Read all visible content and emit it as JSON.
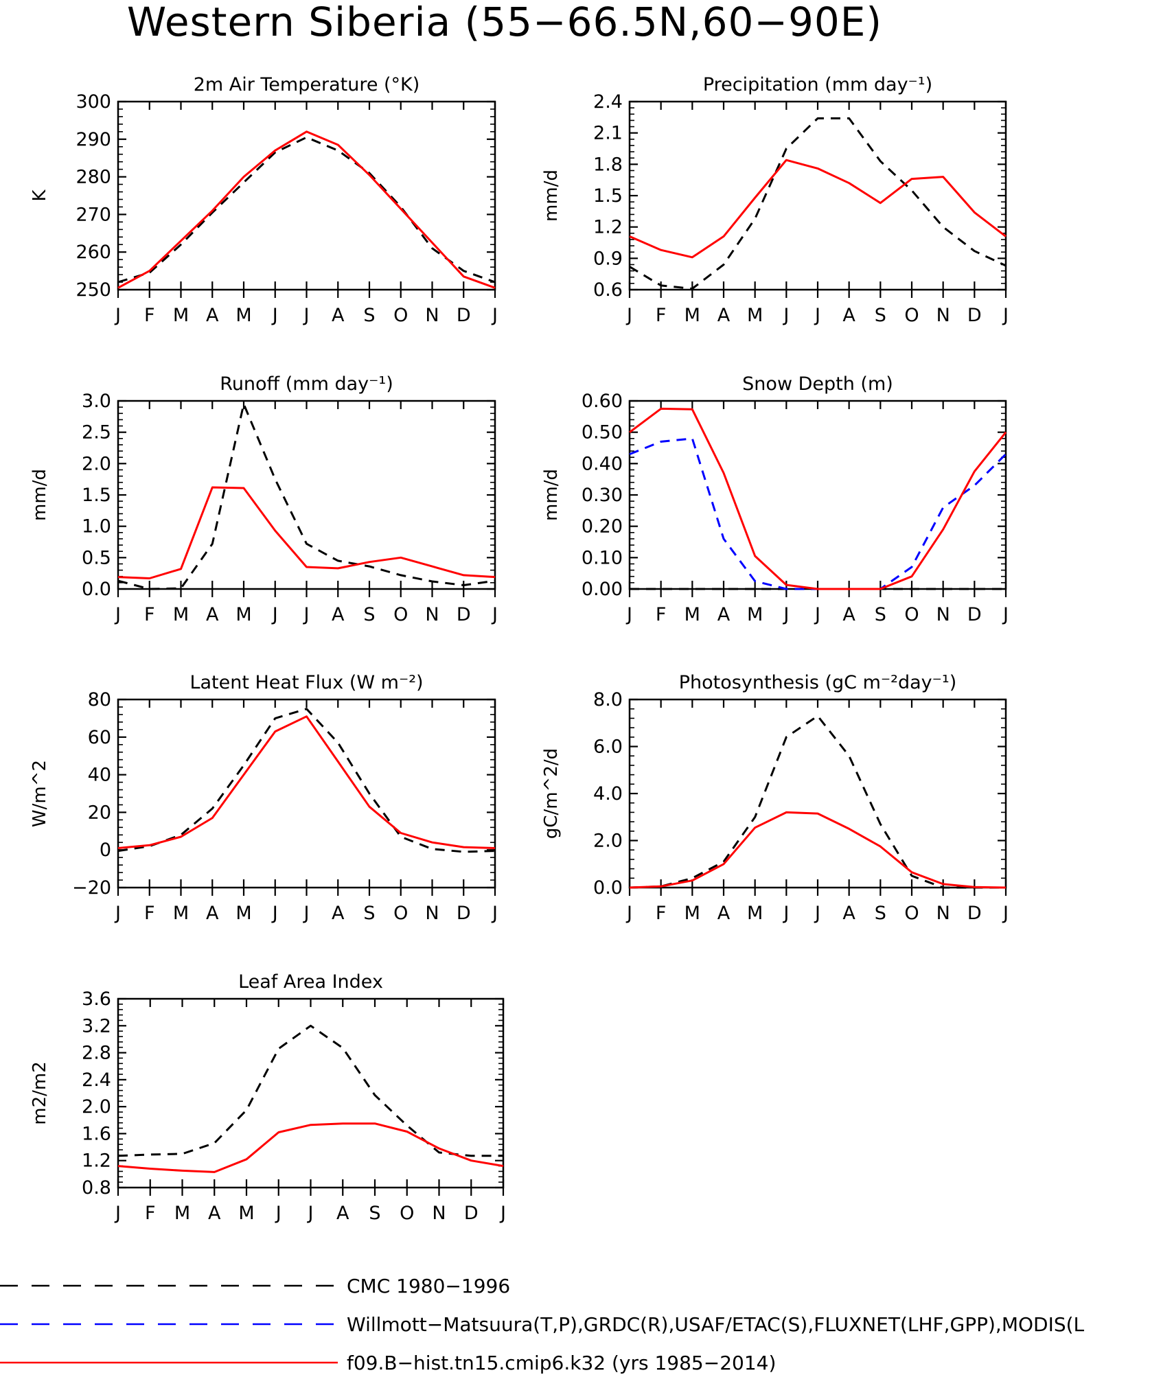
{
  "figure_title": "Western Siberia (55−66.5N,60−90E)",
  "colors": {
    "model": "#ff0000",
    "cmc": "#000000",
    "obs": "#0000ff"
  },
  "legend": [
    {
      "label": "CMC 1980−1996",
      "color": "#000000",
      "style": "dashed"
    },
    {
      "label": "Willmott−Matsuura(T,P),GRDC(R),USAF/ETAC(S),FLUXNET(LHF,GPP),MODIS(L",
      "color": "#0000ff",
      "style": "dashed"
    },
    {
      "label": "f09.B−hist.tn15.cmip6.k32 (yrs 1985−2014)",
      "color": "#ff0000",
      "style": "solid"
    }
  ],
  "chart_data": [
    {
      "type": "line",
      "title": "2m Air Temperature (°K)",
      "ylabel": "K",
      "categories": [
        "J",
        "F",
        "M",
        "A",
        "M",
        "J",
        "J",
        "A",
        "S",
        "O",
        "N",
        "D",
        "J"
      ],
      "ylim": [
        250,
        300
      ],
      "yticks": [
        "250",
        "260",
        "270",
        "280",
        "290",
        "300"
      ],
      "series": [
        {
          "name": "CMC 1980−1996",
          "style": "dashed",
          "color": "#000000",
          "values": [
            252,
            254.5,
            262,
            270.5,
            278.5,
            286.5,
            290.5,
            287,
            281,
            272,
            261,
            255,
            252
          ]
        },
        {
          "name": "f09.B−hist.tn15.cmip6.k32 (yrs 1985−2014)",
          "style": "solid",
          "color": "#ff0000",
          "values": [
            250.5,
            255,
            263,
            271,
            280,
            287,
            292,
            288.5,
            280.5,
            271.5,
            262.5,
            253.5,
            250.5
          ]
        }
      ]
    },
    {
      "type": "line",
      "title": "Precipitation (mm day⁻¹)",
      "ylabel": "mm/d",
      "categories": [
        "J",
        "F",
        "M",
        "A",
        "M",
        "J",
        "J",
        "A",
        "S",
        "O",
        "N",
        "D",
        "J"
      ],
      "ylim": [
        0.6,
        2.4
      ],
      "yticks": [
        "0.6",
        "0.9",
        "1.2",
        "1.5",
        "1.8",
        "2.1",
        "2.4"
      ],
      "series": [
        {
          "name": "CMC 1980−1996",
          "style": "dashed",
          "color": "#000000",
          "values": [
            0.82,
            0.64,
            0.61,
            0.84,
            1.28,
            1.95,
            2.24,
            2.24,
            1.83,
            1.55,
            1.2,
            0.97,
            0.83
          ]
        },
        {
          "name": "f09.B−hist.tn15.cmip6.k32 (yrs 1985−2014)",
          "style": "solid",
          "color": "#ff0000",
          "values": [
            1.11,
            0.98,
            0.91,
            1.11,
            1.48,
            1.84,
            1.76,
            1.62,
            1.43,
            1.66,
            1.68,
            1.34,
            1.11
          ]
        }
      ]
    },
    {
      "type": "line",
      "title": "Runoff (mm day⁻¹)",
      "ylabel": "mm/d",
      "categories": [
        "J",
        "F",
        "M",
        "A",
        "M",
        "J",
        "J",
        "A",
        "S",
        "O",
        "N",
        "D",
        "J"
      ],
      "ylim": [
        0,
        3.0
      ],
      "yticks": [
        "0.0",
        "0.5",
        "1.0",
        "1.5",
        "2.0",
        "2.5",
        "3.0"
      ],
      "series": [
        {
          "name": "CMC 1980−1996",
          "style": "dashed",
          "color": "#000000",
          "values": [
            0.13,
            0.0,
            0.01,
            0.72,
            2.95,
            1.75,
            0.72,
            0.45,
            0.36,
            0.22,
            0.12,
            0.06,
            0.13
          ]
        },
        {
          "name": "f09.B−hist.tn15.cmip6.k32 (yrs 1985−2014)",
          "style": "solid",
          "color": "#ff0000",
          "values": [
            0.19,
            0.17,
            0.32,
            1.62,
            1.61,
            0.93,
            0.35,
            0.33,
            0.43,
            0.5,
            0.36,
            0.22,
            0.19
          ]
        }
      ]
    },
    {
      "type": "line",
      "title": "Snow Depth (m)",
      "ylabel": "mm/d",
      "categories": [
        "J",
        "F",
        "M",
        "A",
        "M",
        "J",
        "J",
        "A",
        "S",
        "O",
        "N",
        "D",
        "J"
      ],
      "ylim": [
        0,
        0.6
      ],
      "yticks": [
        "0.00",
        "0.10",
        "0.20",
        "0.30",
        "0.40",
        "0.50",
        "0.60"
      ],
      "series": [
        {
          "name": "CMC 1980−1996",
          "style": "dashed",
          "color": "#000000",
          "values": [
            0,
            0,
            0,
            0,
            0,
            0,
            0,
            0,
            0,
            0,
            0,
            0,
            0
          ]
        },
        {
          "name": "Willmott−Matsuura(T,P),GRDC(R),USAF/ETAC(S),FLUXNET(LHF,GPP),MODIS(L",
          "style": "dashed",
          "color": "#0000ff",
          "values": [
            0.43,
            0.47,
            0.48,
            0.16,
            0.025,
            0.0,
            0.0,
            0.0,
            0.0,
            0.07,
            0.26,
            0.33,
            0.43
          ]
        },
        {
          "name": "f09.B−hist.tn15.cmip6.k32 (yrs 1985−2014)",
          "style": "solid",
          "color": "#ff0000",
          "values": [
            0.5,
            0.575,
            0.573,
            0.37,
            0.105,
            0.013,
            0.0,
            0.0,
            0.0,
            0.04,
            0.19,
            0.375,
            0.5
          ]
        }
      ]
    },
    {
      "type": "line",
      "title": "Latent Heat Flux (W m⁻²)",
      "ylabel": "W/m^2",
      "categories": [
        "J",
        "F",
        "M",
        "A",
        "M",
        "J",
        "J",
        "A",
        "S",
        "O",
        "N",
        "D",
        "J"
      ],
      "ylim": [
        -20,
        80
      ],
      "yticks": [
        "−20",
        "0",
        "20",
        "40",
        "60",
        "80"
      ],
      "series": [
        {
          "name": "CMC 1980−1996",
          "style": "dashed",
          "color": "#000000",
          "values": [
            -0.5,
            2,
            8,
            22,
            45,
            70,
            75,
            57,
            30,
            7,
            0.5,
            -1,
            -0.5
          ]
        },
        {
          "name": "f09.B−hist.tn15.cmip6.k32 (yrs 1985−2014)",
          "style": "solid",
          "color": "#ff0000",
          "values": [
            1,
            2.5,
            7,
            17,
            40,
            63,
            71,
            47,
            23,
            9,
            4,
            1.5,
            1
          ]
        }
      ]
    },
    {
      "type": "line",
      "title": "Photosynthesis (gC m⁻²day⁻¹)",
      "ylabel": "gC/m^2/d",
      "categories": [
        "J",
        "F",
        "M",
        "A",
        "M",
        "J",
        "J",
        "A",
        "S",
        "O",
        "N",
        "D",
        "J"
      ],
      "ylim": [
        0,
        8.0
      ],
      "yticks": [
        "0.0",
        "2.0",
        "4.0",
        "6.0",
        "8.0"
      ],
      "series": [
        {
          "name": "CMC 1980−1996",
          "style": "dashed",
          "color": "#000000",
          "values": [
            0.0,
            0.05,
            0.4,
            1.1,
            3.0,
            6.4,
            7.3,
            5.6,
            2.7,
            0.5,
            0.0,
            0.0,
            0.0
          ]
        },
        {
          "name": "f09.B−hist.tn15.cmip6.k32 (yrs 1985−2014)",
          "style": "solid",
          "color": "#ff0000",
          "values": [
            0.0,
            0.05,
            0.3,
            1.0,
            2.55,
            3.2,
            3.15,
            2.5,
            1.75,
            0.65,
            0.15,
            0.02,
            0.0
          ]
        }
      ]
    },
    {
      "type": "line",
      "title": "Leaf Area Index",
      "ylabel": "m2/m2",
      "categories": [
        "J",
        "F",
        "M",
        "A",
        "M",
        "J",
        "J",
        "A",
        "S",
        "O",
        "N",
        "D",
        "J"
      ],
      "ylim": [
        0.8,
        3.6
      ],
      "yticks": [
        "0.8",
        "1.2",
        "1.6",
        "2.0",
        "2.4",
        "2.8",
        "3.2",
        "3.6"
      ],
      "series": [
        {
          "name": "CMC 1980−1996",
          "style": "dashed",
          "color": "#000000",
          "values": [
            1.27,
            1.29,
            1.3,
            1.46,
            1.95,
            2.86,
            3.2,
            2.87,
            2.17,
            1.72,
            1.32,
            1.27,
            1.27
          ]
        },
        {
          "name": "f09.B−hist.tn15.cmip6.k32 (yrs 1985−2014)",
          "style": "solid",
          "color": "#ff0000",
          "values": [
            1.12,
            1.08,
            1.05,
            1.03,
            1.22,
            1.62,
            1.73,
            1.75,
            1.75,
            1.63,
            1.38,
            1.2,
            1.12
          ]
        }
      ]
    }
  ]
}
